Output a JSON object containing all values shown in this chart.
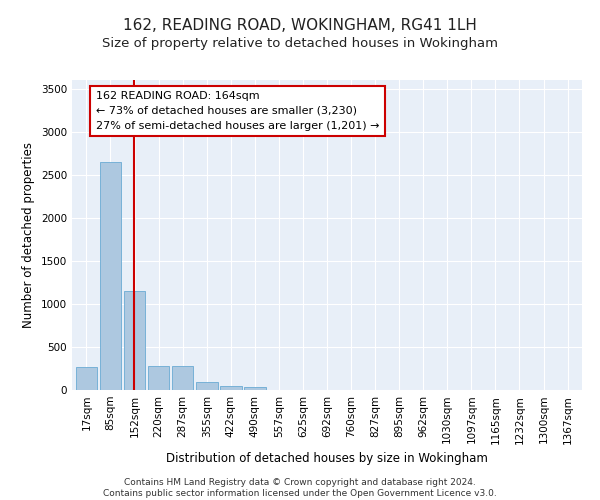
{
  "title": "162, READING ROAD, WOKINGHAM, RG41 1LH",
  "subtitle": "Size of property relative to detached houses in Wokingham",
  "xlabel": "Distribution of detached houses by size in Wokingham",
  "ylabel": "Number of detached properties",
  "footer_line1": "Contains HM Land Registry data © Crown copyright and database right 2024.",
  "footer_line2": "Contains public sector information licensed under the Open Government Licence v3.0.",
  "bar_labels": [
    "17sqm",
    "85sqm",
    "152sqm",
    "220sqm",
    "287sqm",
    "355sqm",
    "422sqm",
    "490sqm",
    "557sqm",
    "625sqm",
    "692sqm",
    "760sqm",
    "827sqm",
    "895sqm",
    "962sqm",
    "1030sqm",
    "1097sqm",
    "1165sqm",
    "1232sqm",
    "1300sqm",
    "1367sqm"
  ],
  "bar_values": [
    270,
    2650,
    1150,
    280,
    280,
    95,
    50,
    35,
    0,
    0,
    0,
    0,
    0,
    0,
    0,
    0,
    0,
    0,
    0,
    0,
    0
  ],
  "bar_color": "#adc8e0",
  "bar_edge_color": "#6aaad4",
  "background_color": "#e8eff8",
  "grid_color": "#ffffff",
  "vline_color": "#cc0000",
  "annotation_text": "162 READING ROAD: 164sqm\n← 73% of detached houses are smaller (3,230)\n27% of semi-detached houses are larger (1,201) →",
  "annotation_box_color": "#ffffff",
  "annotation_box_edge_color": "#cc0000",
  "ylim": [
    0,
    3600
  ],
  "yticks": [
    0,
    500,
    1000,
    1500,
    2000,
    2500,
    3000,
    3500
  ],
  "title_fontsize": 11,
  "subtitle_fontsize": 9.5,
  "axis_label_fontsize": 8.5,
  "tick_fontsize": 7.5,
  "annotation_fontsize": 8,
  "footer_fontsize": 6.5
}
